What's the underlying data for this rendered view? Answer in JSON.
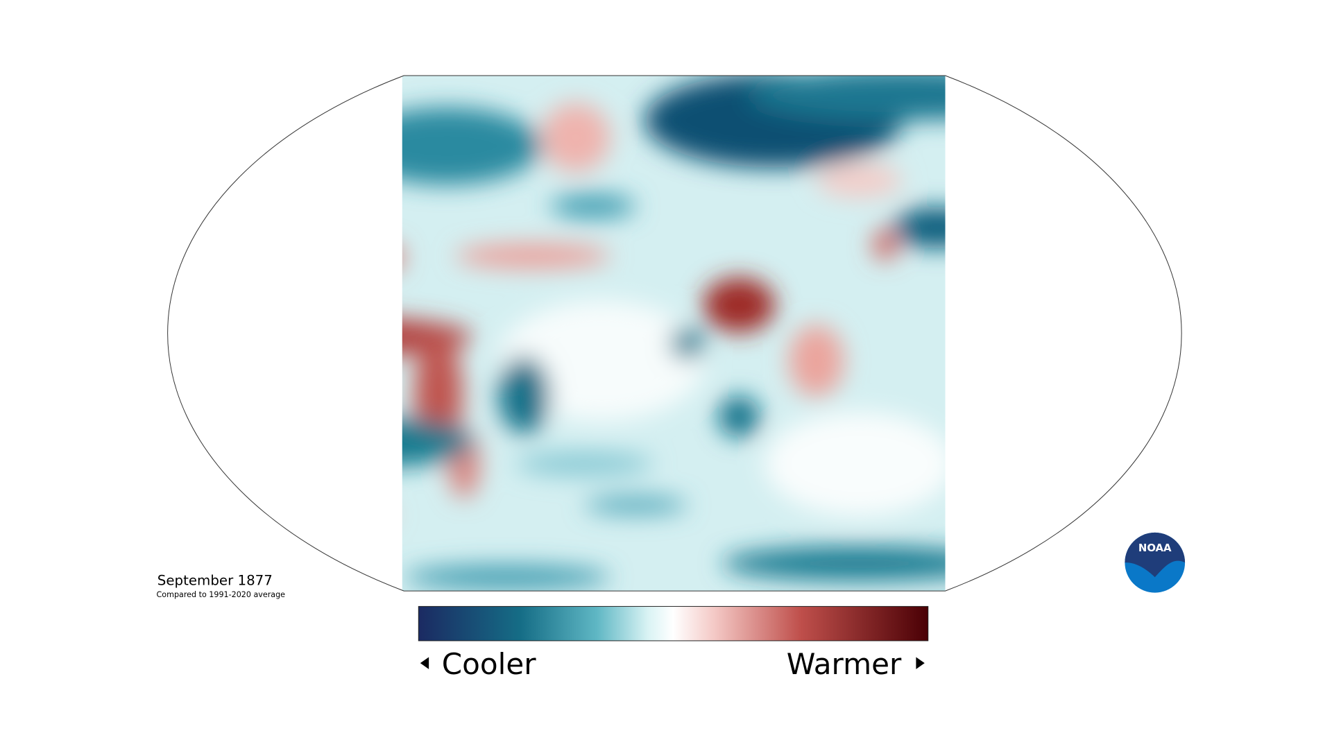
{
  "title": "September 1877",
  "subtitle": "Compared to 1991-2020 average",
  "legend": {
    "low_label": "Cooler",
    "high_label": "Warmer"
  },
  "logo": "NOAA"
}
